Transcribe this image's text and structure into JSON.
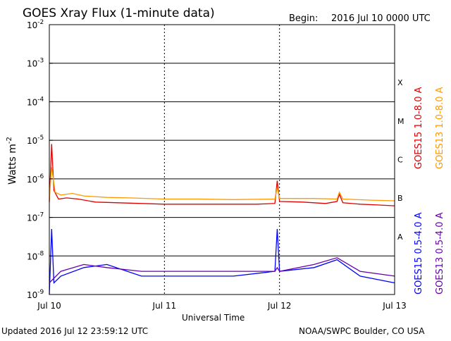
{
  "header": {
    "title": "GOES Xray Flux (1-minute data)",
    "begin_label": "Begin:",
    "begin_value": "2016 Jul 10 0000 UTC"
  },
  "footer": {
    "updated": "Updated 2016 Jul 12 23:59:12 UTC",
    "source": "NOAA/SWPC Boulder, CO USA"
  },
  "chart_data": {
    "type": "line",
    "title": "GOES Xray Flux (1-minute data)",
    "xlabel": "Universal Time",
    "ylabel": "Watts m",
    "ylabel_superscript": "-2",
    "x_unit": "days since Jul 10 0000 UTC",
    "xlim": [
      0,
      3
    ],
    "x_ticks": [
      {
        "x": 0,
        "label": "Jul 10"
      },
      {
        "x": 1,
        "label": "Jul 11"
      },
      {
        "x": 2,
        "label": "Jul 12"
      },
      {
        "x": 3,
        "label": "Jul 13"
      }
    ],
    "yscale": "log",
    "ylim": [
      1e-09,
      0.01
    ],
    "y_ticks": [
      {
        "exp": -2,
        "label": "10",
        "sup": "-2"
      },
      {
        "exp": -3,
        "label": "10",
        "sup": "-3"
      },
      {
        "exp": -4,
        "label": "10",
        "sup": "-4"
      },
      {
        "exp": -5,
        "label": "10",
        "sup": "-5"
      },
      {
        "exp": -6,
        "label": "10",
        "sup": "-6"
      },
      {
        "exp": -7,
        "label": "10",
        "sup": "-7"
      },
      {
        "exp": -8,
        "label": "10",
        "sup": "-8"
      },
      {
        "exp": -9,
        "label": "10",
        "sup": "-9"
      }
    ],
    "flare_classes": [
      {
        "label": "X",
        "exp": -4
      },
      {
        "label": "M",
        "exp": -5
      },
      {
        "label": "C",
        "exp": -6
      },
      {
        "label": "B",
        "exp": -7
      },
      {
        "label": "A",
        "exp": -8
      }
    ],
    "grid": true,
    "legend_position": "right",
    "series": [
      {
        "name": "GOES15 1.0-8.0 A",
        "color": "#dd0000",
        "points": [
          [
            0,
            2.5e-07
          ],
          [
            0.02,
            8e-06
          ],
          [
            0.04,
            5e-07
          ],
          [
            0.08,
            3e-07
          ],
          [
            0.15,
            3.2e-07
          ],
          [
            0.25,
            3e-07
          ],
          [
            0.4,
            2.5e-07
          ],
          [
            0.6,
            2.4e-07
          ],
          [
            0.8,
            2.3e-07
          ],
          [
            1.0,
            2.2e-07
          ],
          [
            1.2,
            2.2e-07
          ],
          [
            1.5,
            2.2e-07
          ],
          [
            1.8,
            2.2e-07
          ],
          [
            1.96,
            2.3e-07
          ],
          [
            1.98,
            9e-07
          ],
          [
            2.0,
            2.6e-07
          ],
          [
            2.2,
            2.5e-07
          ],
          [
            2.4,
            2.3e-07
          ],
          [
            2.5,
            2.6e-07
          ],
          [
            2.52,
            4e-07
          ],
          [
            2.55,
            2.4e-07
          ],
          [
            2.7,
            2.2e-07
          ],
          [
            2.85,
            2.1e-07
          ],
          [
            3.0,
            2e-07
          ]
        ]
      },
      {
        "name": "GOES13 1.0-8.0 A",
        "color": "#ff9900",
        "points": [
          [
            0,
            3e-07
          ],
          [
            0.02,
            2e-06
          ],
          [
            0.05,
            4.5e-07
          ],
          [
            0.1,
            3.8e-07
          ],
          [
            0.2,
            4.2e-07
          ],
          [
            0.3,
            3.6e-07
          ],
          [
            0.5,
            3.3e-07
          ],
          [
            0.7,
            3.2e-07
          ],
          [
            1.0,
            3e-07
          ],
          [
            1.3,
            3e-07
          ],
          [
            1.6,
            2.9e-07
          ],
          [
            1.96,
            3e-07
          ],
          [
            1.98,
            6e-07
          ],
          [
            2.0,
            3.1e-07
          ],
          [
            2.3,
            3.1e-07
          ],
          [
            2.5,
            3e-07
          ],
          [
            2.52,
            4.5e-07
          ],
          [
            2.55,
            3e-07
          ],
          [
            2.8,
            2.8e-07
          ],
          [
            3.0,
            2.7e-07
          ]
        ]
      },
      {
        "name": "GOES15 0.5-4.0 A",
        "color": "#0000ff",
        "points": [
          [
            0,
            1e-09
          ],
          [
            0.02,
            5e-08
          ],
          [
            0.04,
            2e-09
          ],
          [
            0.1,
            3e-09
          ],
          [
            0.3,
            5e-09
          ],
          [
            0.5,
            6e-09
          ],
          [
            0.8,
            3e-09
          ],
          [
            1.0,
            3e-09
          ],
          [
            1.3,
            3e-09
          ],
          [
            1.6,
            3e-09
          ],
          [
            1.96,
            4e-09
          ],
          [
            1.98,
            5e-08
          ],
          [
            2.0,
            4e-09
          ],
          [
            2.3,
            5e-09
          ],
          [
            2.5,
            8e-09
          ],
          [
            2.7,
            3e-09
          ],
          [
            3.0,
            2e-09
          ]
        ]
      },
      {
        "name": "GOES13 0.5-4.0 A",
        "color": "#6600aa",
        "points": [
          [
            0,
            2e-09
          ],
          [
            0.1,
            4e-09
          ],
          [
            0.3,
            6e-09
          ],
          [
            0.5,
            5e-09
          ],
          [
            0.8,
            4e-09
          ],
          [
            1.0,
            4e-09
          ],
          [
            1.3,
            4e-09
          ],
          [
            1.6,
            4e-09
          ],
          [
            1.96,
            4e-09
          ],
          [
            1.98,
            5e-09
          ],
          [
            2.0,
            4e-09
          ],
          [
            2.3,
            6e-09
          ],
          [
            2.5,
            9e-09
          ],
          [
            2.7,
            4e-09
          ],
          [
            3.0,
            3e-09
          ]
        ]
      }
    ]
  }
}
